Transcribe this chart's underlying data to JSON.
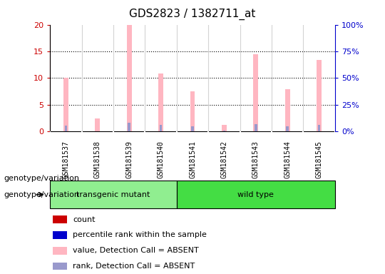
{
  "title": "GDS2823 / 1382711_at",
  "samples": [
    "GSM181537",
    "GSM181538",
    "GSM181539",
    "GSM181540",
    "GSM181541",
    "GSM181542",
    "GSM181543",
    "GSM181544",
    "GSM181545"
  ],
  "pink_bars": [
    10.1,
    2.5,
    20.0,
    10.8,
    7.5,
    1.2,
    14.4,
    7.9,
    13.4
  ],
  "blue_bars": [
    5.7,
    null,
    8.4,
    6.0,
    5.0,
    0.9,
    6.8,
    5.0,
    6.4
  ],
  "ylim_left": [
    0,
    20
  ],
  "ylim_right": [
    0,
    100
  ],
  "yticks_left": [
    0,
    5,
    10,
    15,
    20
  ],
  "yticks_right": [
    0,
    25,
    50,
    75,
    100
  ],
  "ytick_labels_right": [
    "0%",
    "25%",
    "50%",
    "75%",
    "100%"
  ],
  "left_axis_color": "#CC0000",
  "right_axis_color": "#0000CC",
  "pink_bar_color": "#FFB6C1",
  "blue_bar_color": "#9999CC",
  "grid_lines": [
    5,
    10,
    15
  ],
  "group1_label": "transgenic mutant",
  "group1_color": "#90EE90",
  "group1_samples": [
    0,
    1,
    2,
    3
  ],
  "group2_label": "wild type",
  "group2_color": "#44DD44",
  "group2_samples": [
    4,
    5,
    6,
    7,
    8
  ],
  "legend_items": [
    {
      "color": "#CC0000",
      "label": "count"
    },
    {
      "color": "#0000CC",
      "label": "percentile rank within the sample"
    },
    {
      "color": "#FFB6C1",
      "label": "value, Detection Call = ABSENT"
    },
    {
      "color": "#9999CC",
      "label": "rank, Detection Call = ABSENT"
    }
  ],
  "genotype_label": "genotype/variation",
  "background_color": "#FFFFFF",
  "plot_bg_color": "#FFFFFF",
  "xtick_bg_color": "#CCCCCC",
  "pink_bar_width": 0.15,
  "blue_bar_width": 0.08
}
